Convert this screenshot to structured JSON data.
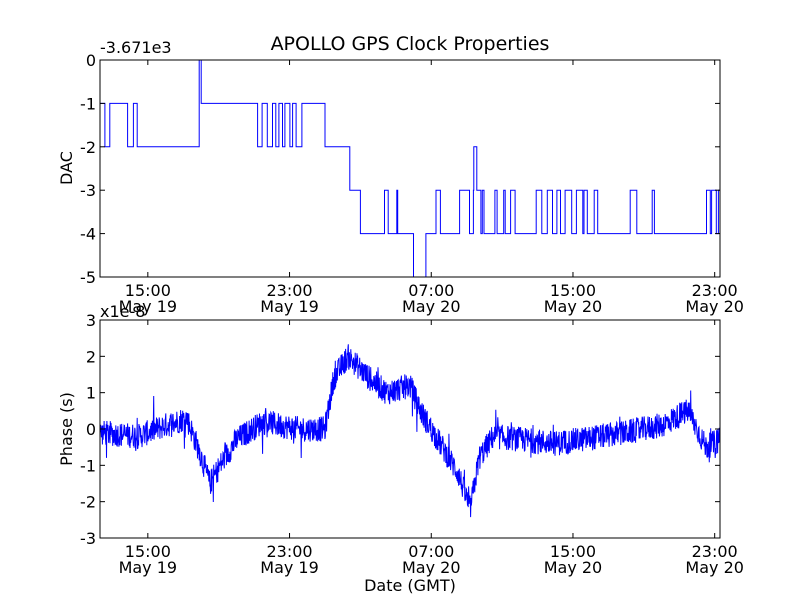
{
  "chart_data": {
    "type": "line",
    "title": "APOLLO GPS Clock Properties",
    "xlabel": "Date (GMT)",
    "x_ticks": [
      {
        "t": 15,
        "time": "15:00",
        "date": "May 19"
      },
      {
        "t": 23,
        "time": "23:00",
        "date": "May 19"
      },
      {
        "t": 31,
        "time": "07:00",
        "date": "May 20"
      },
      {
        "t": 39,
        "time": "15:00",
        "date": "May 20"
      },
      {
        "t": 47,
        "time": "23:00",
        "date": "May 20"
      }
    ],
    "xlim": [
      12.3,
      47.3
    ],
    "colors": {
      "series": "#0000ff",
      "axes": "#000000"
    },
    "panels": [
      {
        "name": "dac",
        "ylabel": "DAC",
        "offset_label": "-3.671e3",
        "ylim": [
          -5,
          0
        ],
        "yticks": [
          "0",
          "-1",
          "-2",
          "-3",
          "-4",
          "-5"
        ],
        "ytick_values": [
          0,
          -1,
          -2,
          -3,
          -4,
          -5
        ],
        "step_segments": [
          {
            "from": 12.3,
            "to": 14.4,
            "level": -1,
            "alt": -2,
            "flip_rate": 0.55
          },
          {
            "from": 14.4,
            "to": 15.5,
            "level": -2,
            "alt": -2,
            "flip_rate": 0
          },
          {
            "from": 15.5,
            "to": 17.9,
            "level": -2,
            "alt": -2,
            "flip_rate": 0
          },
          {
            "from": 17.9,
            "to": 18.1,
            "level": 0,
            "alt": -1,
            "flip_rate": 0.5
          },
          {
            "from": 18.1,
            "to": 20.9,
            "level": -1,
            "alt": -1,
            "flip_rate": 0
          },
          {
            "from": 20.9,
            "to": 22.4,
            "level": -1,
            "alt": -2,
            "flip_rate": 0.6
          },
          {
            "from": 22.4,
            "to": 25.0,
            "level": -1,
            "alt": -2,
            "flip_rate": 0.25
          },
          {
            "from": 25.0,
            "to": 26.4,
            "level": -2,
            "alt": -2,
            "flip_rate": 0
          },
          {
            "from": 26.4,
            "to": 27.0,
            "level": -3,
            "alt": -3,
            "flip_rate": 0
          },
          {
            "from": 27.0,
            "to": 30.0,
            "level": -4,
            "alt": -3,
            "flip_rate": 0.45
          },
          {
            "from": 30.0,
            "to": 30.7,
            "level": -5,
            "alt": -4,
            "flip_rate": 0.5
          },
          {
            "from": 30.7,
            "to": 32.6,
            "level": -4,
            "alt": -3,
            "flip_rate": 0.25
          },
          {
            "from": 32.6,
            "to": 33.4,
            "level": -3,
            "alt": -4,
            "flip_rate": 0.35
          },
          {
            "from": 33.4,
            "to": 33.8,
            "level": -2,
            "alt": -3,
            "flip_rate": 0.3
          },
          {
            "from": 33.8,
            "to": 43.6,
            "level": -4,
            "alt": -3,
            "flip_rate": 0.42
          },
          {
            "from": 43.6,
            "to": 46.4,
            "level": -4,
            "alt": -4,
            "flip_rate": 0
          },
          {
            "from": 46.4,
            "to": 47.3,
            "level": -4,
            "alt": -3,
            "flip_rate": 0.5
          }
        ]
      },
      {
        "name": "phase",
        "ylabel": "Phase (s)",
        "offset_label": "x1e-8",
        "ylim": [
          -3,
          3
        ],
        "yticks": [
          "3",
          "2",
          "1",
          "0",
          "-1",
          "-2",
          "-3"
        ],
        "ytick_values": [
          3,
          2,
          1,
          0,
          -1,
          -2,
          -3
        ],
        "trend": [
          {
            "t": 12.3,
            "v": -0.1
          },
          {
            "t": 14.5,
            "v": -0.2
          },
          {
            "t": 16.0,
            "v": 0.1
          },
          {
            "t": 17.2,
            "v": 0.3
          },
          {
            "t": 17.9,
            "v": -0.6
          },
          {
            "t": 18.5,
            "v": -1.5
          },
          {
            "t": 19.2,
            "v": -0.9
          },
          {
            "t": 20.0,
            "v": -0.3
          },
          {
            "t": 21.5,
            "v": 0.2
          },
          {
            "t": 23.5,
            "v": 0.0
          },
          {
            "t": 25.0,
            "v": 0.0
          },
          {
            "t": 25.5,
            "v": 1.4
          },
          {
            "t": 26.3,
            "v": 2.0
          },
          {
            "t": 27.5,
            "v": 1.4
          },
          {
            "t": 28.5,
            "v": 1.0
          },
          {
            "t": 29.8,
            "v": 1.2
          },
          {
            "t": 30.5,
            "v": 0.4
          },
          {
            "t": 31.5,
            "v": -0.4
          },
          {
            "t": 32.5,
            "v": -1.2
          },
          {
            "t": 33.2,
            "v": -2.2
          },
          {
            "t": 33.7,
            "v": -0.8
          },
          {
            "t": 34.5,
            "v": -0.2
          },
          {
            "t": 38.0,
            "v": -0.4
          },
          {
            "t": 42.0,
            "v": -0.1
          },
          {
            "t": 44.0,
            "v": 0.1
          },
          {
            "t": 45.5,
            "v": 0.5
          },
          {
            "t": 46.5,
            "v": -0.5
          },
          {
            "t": 47.3,
            "v": -0.3
          }
        ],
        "noise_amplitude": 0.35,
        "spike_amplitude": 0.7
      }
    ]
  }
}
